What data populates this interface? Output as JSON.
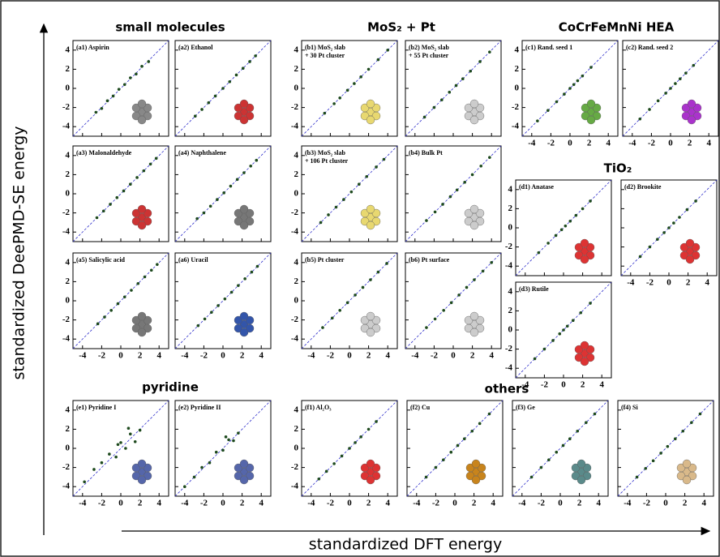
{
  "x_label": "standardized DFT energy",
  "y_label": "standardized DeePMD-SE energy",
  "groups": [
    "small molecules",
    "MoS₂ + Pt",
    "CoCrFeMnNi HEA",
    "TiO₂",
    "pyridine",
    "others"
  ],
  "axes": {
    "xlim": [
      -5,
      5
    ],
    "ylim": [
      -5,
      5
    ],
    "xticks": [
      -4,
      -2,
      0,
      2,
      4
    ],
    "yticks": [
      -4,
      -2,
      0,
      2,
      4
    ]
  },
  "chart_data": [
    {
      "type": "scatter",
      "title": "(a1) Aspirin",
      "color": "#1e4a1e",
      "x": [
        -2.6,
        -2,
        -1.4,
        -0.8,
        -0.2,
        0.4,
        1,
        1.6,
        2.2,
        2.9
      ],
      "y": [
        -2.5,
        -2.1,
        -1.3,
        -0.8,
        -0.1,
        0.4,
        1.1,
        1.5,
        2.3,
        2.8
      ]
    },
    {
      "type": "scatter",
      "title": "(a2) Ethanol",
      "color": "#1e4a1e",
      "x": [
        -2.9,
        -2.2,
        -1.5,
        -0.8,
        0,
        0.7,
        1.4,
        2.1,
        2.8,
        3.4
      ],
      "y": [
        -2.9,
        -2.2,
        -1.5,
        -0.8,
        0,
        0.7,
        1.4,
        2.1,
        2.8,
        3.4
      ]
    },
    {
      "type": "scatter",
      "title": "(a3) Malonaldehyde",
      "color": "#1e4a1e",
      "x": [
        -2.5,
        -1.8,
        -1.1,
        -0.4,
        0.3,
        1,
        1.7,
        2.4,
        3.1,
        3.7
      ],
      "y": [
        -2.5,
        -1.8,
        -1.1,
        -0.4,
        0.3,
        1,
        1.7,
        2.4,
        3.1,
        3.7
      ]
    },
    {
      "type": "scatter",
      "title": "(a4) Naphthalene",
      "color": "#1e4a1e",
      "x": [
        -2.7,
        -2,
        -1.3,
        -0.6,
        0.1,
        0.8,
        1.5,
        2.2,
        2.9,
        3.5
      ],
      "y": [
        -2.6,
        -2,
        -1.3,
        -0.6,
        0.1,
        0.8,
        1.5,
        2.2,
        2.9,
        3.5
      ]
    },
    {
      "type": "scatter",
      "title": "(a5) Salicylic acid",
      "color": "#1e4a1e",
      "x": [
        -2.4,
        -1.7,
        -1,
        -0.3,
        0.4,
        1.1,
        1.8,
        2.5,
        3.2,
        3.8
      ],
      "y": [
        -2.4,
        -1.7,
        -1,
        -0.3,
        0.4,
        1.1,
        1.8,
        2.5,
        3.2,
        3.8
      ]
    },
    {
      "type": "scatter",
      "title": "(a6) Uracil",
      "color": "#1e4a1e",
      "x": [
        -2.6,
        -1.9,
        -1.2,
        -0.5,
        0.2,
        0.9,
        1.6,
        2.3,
        3,
        3.6
      ],
      "y": [
        -2.6,
        -1.9,
        -1.2,
        -0.5,
        0.2,
        0.9,
        1.6,
        2.3,
        3,
        3.6
      ]
    },
    {
      "type": "scatter",
      "title": [
        "(b1) MoS₂ slab",
        "+ 30 Pt cluster"
      ],
      "color": "#1e4a1e",
      "x": [
        -2.6,
        -1.6,
        -1,
        -0.2,
        0.5,
        1.2,
        2,
        3,
        4
      ],
      "y": [
        -2.6,
        -1.6,
        -1,
        -0.2,
        0.5,
        1.2,
        2,
        3,
        4
      ]
    },
    {
      "type": "scatter",
      "title": [
        "(b2) MoS₂ slab",
        "+ 55 Pt cluster"
      ],
      "color": "#1e4a1e",
      "x": [
        -3,
        -2,
        -1.2,
        -0.4,
        0.3,
        1,
        1.8,
        2.8,
        3.8
      ],
      "y": [
        -3,
        -2,
        -1.2,
        -0.4,
        0.3,
        1,
        1.8,
        2.8,
        3.8
      ]
    },
    {
      "type": "scatter",
      "title": [
        "(b3) MoS₂ slab",
        "+ 106 Pt cluster"
      ],
      "color": "#1e4a1e",
      "x": [
        -3,
        -2.2,
        -1.4,
        -0.6,
        0.2,
        1,
        1.8,
        2.8,
        3.6
      ],
      "y": [
        -3,
        -2.2,
        -1.4,
        -0.6,
        0.2,
        1,
        1.8,
        2.8,
        3.6
      ]
    },
    {
      "type": "scatter",
      "title": "(b4) Bulk Pt",
      "color": "#1e4a1e",
      "x": [
        -2.8,
        -1.9,
        -1.1,
        -0.3,
        0.4,
        1.2,
        2,
        2.9,
        3.8
      ],
      "y": [
        -2.8,
        -1.9,
        -1.1,
        -0.3,
        0.4,
        1.2,
        2,
        2.9,
        3.8
      ]
    },
    {
      "type": "scatter",
      "title": "(b5) Pt cluster",
      "color": "#1e4a1e",
      "x": [
        -2.8,
        -1.8,
        -1,
        -0.2,
        0.6,
        1.4,
        2.2,
        3,
        3.9
      ],
      "y": [
        -2.8,
        -1.8,
        -1,
        -0.2,
        0.6,
        1.4,
        2.2,
        3,
        3.9
      ]
    },
    {
      "type": "scatter",
      "title": "(b6) Pt surface",
      "color": "#1e4a1e",
      "x": [
        -2.8,
        -1.9,
        -1,
        -0.2,
        0.6,
        1.4,
        2.2,
        3.1,
        4
      ],
      "y": [
        -2.8,
        -1.9,
        -1,
        -0.2,
        0.6,
        1.4,
        2.2,
        3.1,
        4
      ]
    },
    {
      "type": "scatter",
      "title": "(c1) Rand. seed 1",
      "color": "#1e4a1e",
      "x": [
        -3.4,
        -2.3,
        -1.4,
        -0.6,
        0,
        0.4,
        0.8,
        1.3,
        2.2
      ],
      "y": [
        -3.4,
        -2.3,
        -1.4,
        -0.6,
        0,
        0.4,
        0.8,
        1.3,
        2.2
      ]
    },
    {
      "type": "scatter",
      "title": "(c2) Rand. seed 2",
      "color": "#1e4a1e",
      "x": [
        -3.2,
        -2.2,
        -1.3,
        -0.5,
        0,
        0.5,
        1,
        1.6,
        2.4
      ],
      "y": [
        -3.2,
        -2.2,
        -1.3,
        -0.5,
        0,
        0.5,
        1,
        1.6,
        2.4
      ]
    },
    {
      "type": "scatter",
      "title": "(d1) Anatase",
      "color": "#1e4a1e",
      "x": [
        -2.6,
        -1.6,
        -0.8,
        -0.2,
        0.2,
        0.7,
        1.3,
        2,
        2.8
      ],
      "y": [
        -2.6,
        -1.6,
        -0.8,
        -0.2,
        0.2,
        0.7,
        1.3,
        2,
        2.8
      ]
    },
    {
      "type": "scatter",
      "title": "(d2) Brookite",
      "color": "#1e4a1e",
      "x": [
        -3,
        -2,
        -1.2,
        -0.5,
        0,
        0.5,
        1.1,
        1.9,
        2.8
      ],
      "y": [
        -3,
        -2,
        -1.2,
        -0.5,
        0,
        0.5,
        1.1,
        1.9,
        2.8
      ]
    },
    {
      "type": "scatter",
      "title": "(d3) Rutile",
      "color": "#1e4a1e",
      "x": [
        -3,
        -2,
        -1.1,
        -0.4,
        0,
        0.4,
        1,
        1.8,
        2.8
      ],
      "y": [
        -3,
        -2,
        -1.1,
        -0.4,
        0,
        0.4,
        1,
        1.8,
        2.8
      ]
    },
    {
      "type": "scatter",
      "title": "(e1) Pyridine I",
      "color": "#1e4a1e",
      "x": [
        -3.8,
        -2.8,
        -2,
        -1.2,
        -0.5,
        0,
        0.5,
        1,
        1.5,
        2,
        0.8,
        -0.3
      ],
      "y": [
        -3.5,
        -2.2,
        -1.5,
        -0.6,
        -0.9,
        0.6,
        0,
        1.5,
        0.7,
        1.9,
        2.1,
        0.4
      ]
    },
    {
      "type": "scatter",
      "title": "(e2) Pyridine II",
      "color": "#1e4a1e",
      "x": [
        -4,
        -3,
        -2.2,
        -1.4,
        -0.7,
        0,
        0.6,
        1.1,
        1.6,
        0.3
      ],
      "y": [
        -4,
        -3,
        -2,
        -1.5,
        -0.4,
        -0.2,
        0.9,
        0.8,
        1.6,
        1.2
      ]
    },
    {
      "type": "scatter",
      "title": "(f1) Al₂O₃",
      "color": "#1e4a1e",
      "x": [
        -3.2,
        -2.4,
        -1.6,
        -0.8,
        0,
        0.6,
        1.2,
        2,
        2.8
      ],
      "y": [
        -3.2,
        -2.4,
        -1.6,
        -0.8,
        0,
        0.6,
        1.2,
        2,
        2.8
      ]
    },
    {
      "type": "scatter",
      "title": "(f2) Cu",
      "color": "#1e4a1e",
      "x": [
        -3,
        -2,
        -1.2,
        -0.4,
        0.3,
        1,
        1.8,
        2.6,
        3.6
      ],
      "y": [
        -3,
        -2,
        -1.2,
        -0.4,
        0.3,
        1,
        1.8,
        2.6,
        3.6
      ]
    },
    {
      "type": "scatter",
      "title": "(f3) Ge",
      "color": "#1e4a1e",
      "x": [
        -3,
        -2,
        -1.2,
        -0.4,
        0.3,
        1,
        1.8,
        2.7,
        3.6
      ],
      "y": [
        -3,
        -2,
        -1.2,
        -0.4,
        0.3,
        1,
        1.8,
        2.7,
        3.6
      ]
    },
    {
      "type": "scatter",
      "title": "(f4) Si",
      "color": "#1e4a1e",
      "x": [
        -3,
        -2.1,
        -1.3,
        -0.5,
        0.2,
        1,
        1.8,
        2.7,
        3.6
      ],
      "y": [
        -3,
        -2.1,
        -1.3,
        -0.5,
        0.2,
        1,
        1.8,
        2.7,
        3.6
      ]
    }
  ]
}
